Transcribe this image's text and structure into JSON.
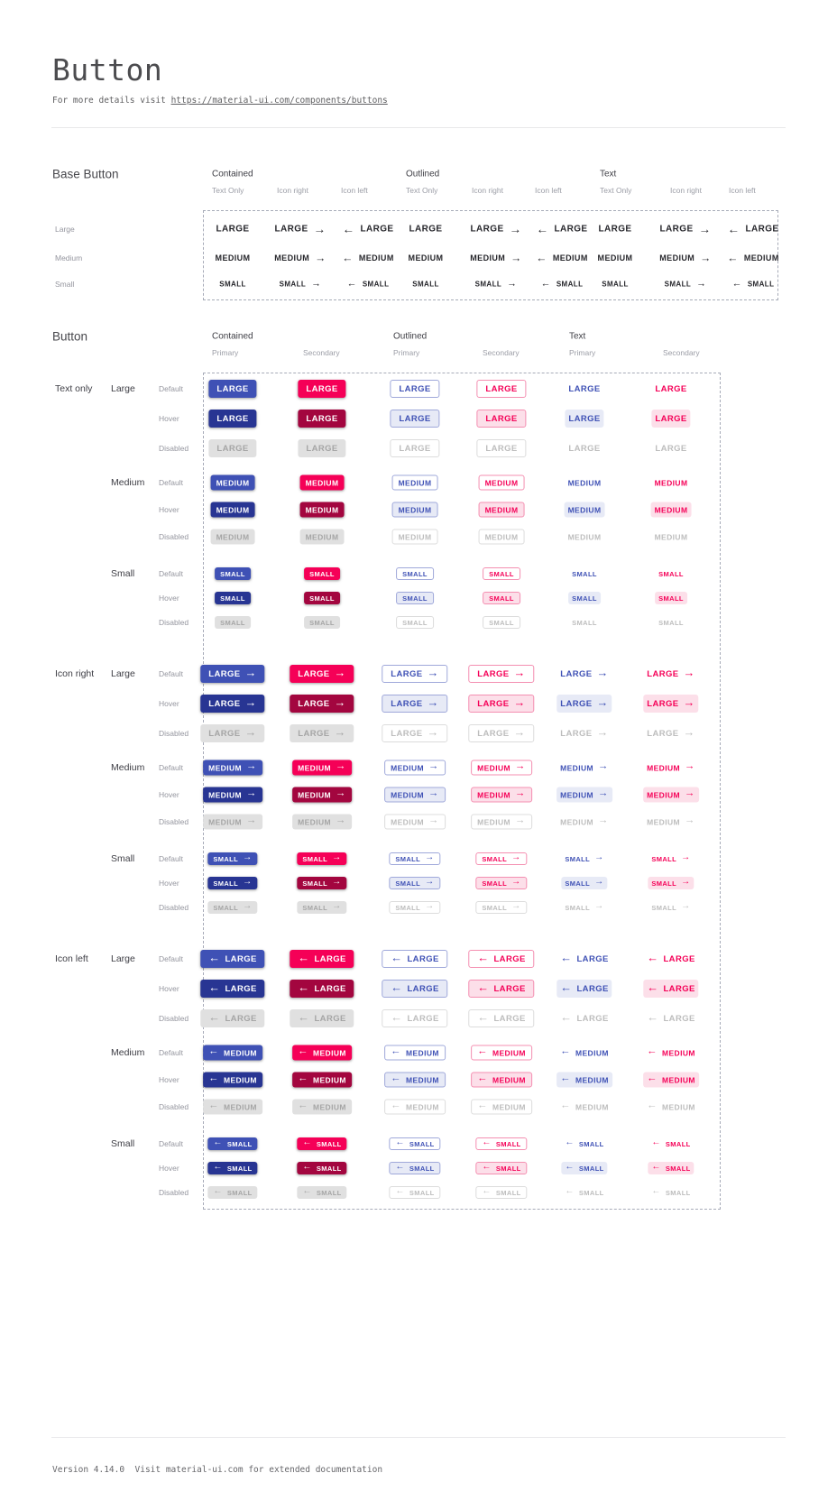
{
  "header": {
    "title": "Button",
    "subtitle_prefix": "For more details visit ",
    "subtitle_link": "https://material-ui.com/components/buttons"
  },
  "base_section": {
    "title": "Base Button",
    "group_headers": [
      "Contained",
      "Outlined",
      "Text"
    ],
    "variant_headers": [
      "Text Only",
      "Icon right",
      "Icon left"
    ],
    "row_labels": [
      "Large",
      "Medium",
      "Small"
    ],
    "button_labels": {
      "Large": "LARGE",
      "Medium": "MEDIUM",
      "Small": "SMALL"
    }
  },
  "button_section": {
    "title": "Button",
    "group_headers": [
      "Contained",
      "Outlined",
      "Text"
    ],
    "palette_headers": [
      "Primary",
      "Secondary"
    ],
    "icon_groups": [
      "Text only",
      "Icon right",
      "Icon left"
    ],
    "sizes": [
      "Large",
      "Medium",
      "Small"
    ],
    "states": [
      "Default",
      "Hover",
      "Disabled"
    ],
    "button_labels": {
      "Large": "LARGE",
      "Medium": "MEDIUM",
      "Small": "SMALL"
    }
  },
  "icons": {
    "arrow_right_icon": "→",
    "arrow_left_icon": "←"
  },
  "colors": {
    "primary": "#3f51b5",
    "primary_hover": "#283593",
    "primary_tint": "#e7eaf6",
    "primary_border": "#9fa8da",
    "secondary": "#f50057",
    "secondary_hover": "#a3063f",
    "secondary_tint": "#fcdfe9",
    "secondary_border": "#f48fb1",
    "disabled_bg": "#e0e0e0",
    "disabled_text": "#a5a5a5",
    "disabled_text2": "#bdbdbd",
    "disabled_border": "#dcdcdc",
    "text_dark": "#26262b"
  },
  "footer": {
    "text": "Version 4.14.0  Visit material-ui.com for extended documentation"
  }
}
